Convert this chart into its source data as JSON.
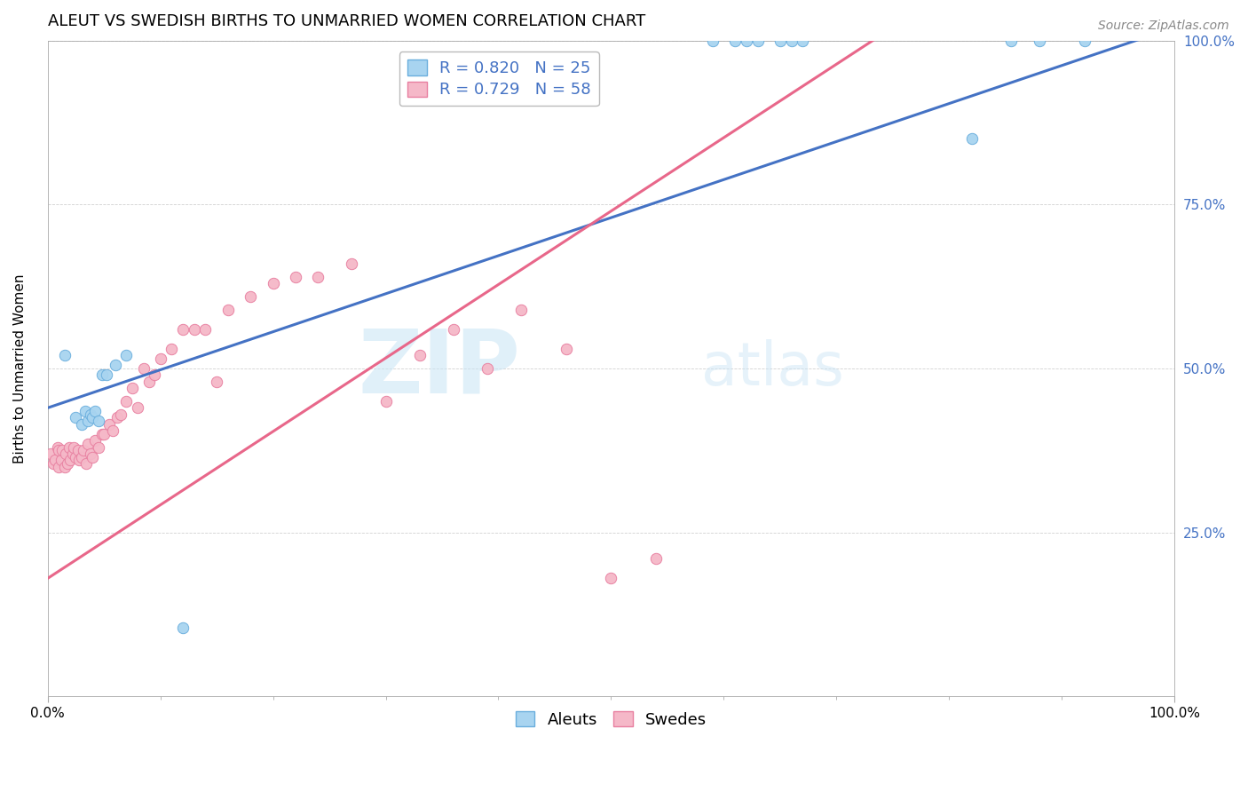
{
  "title": "ALEUT VS SWEDISH BIRTHS TO UNMARRIED WOMEN CORRELATION CHART",
  "source": "Source: ZipAtlas.com",
  "ylabel": "Births to Unmarried Women",
  "xlim": [
    0.0,
    1.0
  ],
  "ylim": [
    0.0,
    1.0
  ],
  "ytick_positions": [
    0.25,
    0.5,
    0.75,
    1.0
  ],
  "ytick_labels": [
    "25.0%",
    "50.0%",
    "75.0%",
    "100.0%"
  ],
  "aleut_color": "#a8d4f0",
  "aleut_edge_color": "#6aaedd",
  "swede_color": "#f5b8c8",
  "swede_edge_color": "#e87fa0",
  "aleut_line_color": "#4472C4",
  "swede_line_color": "#e8678a",
  "aleut_R": 0.82,
  "aleut_N": 25,
  "swede_R": 0.729,
  "swede_N": 58,
  "watermark_zip": "ZIP",
  "watermark_atlas": "atlas",
  "legend_label_aleut": "Aleuts",
  "legend_label_swede": "Swedes",
  "aleut_line_x0": 0.0,
  "aleut_line_y0": 0.44,
  "aleut_line_x1": 1.0,
  "aleut_line_y1": 1.02,
  "swede_line_x0": 0.0,
  "swede_line_y0": 0.18,
  "swede_line_x1": 0.75,
  "swede_line_y1": 1.02,
  "title_fontsize": 13,
  "axis_label_fontsize": 11,
  "tick_fontsize": 11,
  "legend_fontsize": 13,
  "source_fontsize": 10,
  "marker_size": 80,
  "aleut_x": [
    0.025,
    0.03,
    0.033,
    0.036,
    0.038,
    0.04,
    0.042,
    0.045,
    0.048,
    0.052,
    0.015,
    0.06,
    0.07,
    0.59,
    0.61,
    0.62,
    0.63,
    0.65,
    0.66,
    0.67,
    0.82,
    0.855,
    0.88,
    0.92,
    0.12
  ],
  "aleut_y": [
    0.425,
    0.415,
    0.435,
    0.42,
    0.43,
    0.425,
    0.435,
    0.42,
    0.49,
    0.49,
    0.52,
    0.505,
    0.52,
    1.0,
    1.0,
    1.0,
    1.0,
    1.0,
    1.0,
    1.0,
    0.85,
    1.0,
    1.0,
    1.0,
    0.105
  ],
  "swede_x": [
    0.003,
    0.005,
    0.007,
    0.009,
    0.01,
    0.01,
    0.012,
    0.013,
    0.015,
    0.016,
    0.018,
    0.019,
    0.02,
    0.022,
    0.023,
    0.025,
    0.027,
    0.028,
    0.03,
    0.032,
    0.034,
    0.036,
    0.038,
    0.04,
    0.042,
    0.045,
    0.048,
    0.05,
    0.055,
    0.058,
    0.062,
    0.065,
    0.07,
    0.075,
    0.08,
    0.085,
    0.09,
    0.095,
    0.1,
    0.11,
    0.12,
    0.13,
    0.14,
    0.15,
    0.16,
    0.18,
    0.2,
    0.22,
    0.24,
    0.27,
    0.3,
    0.33,
    0.36,
    0.39,
    0.42,
    0.46,
    0.5,
    0.54
  ],
  "swede_y": [
    0.37,
    0.355,
    0.36,
    0.38,
    0.35,
    0.375,
    0.36,
    0.375,
    0.35,
    0.37,
    0.355,
    0.38,
    0.36,
    0.37,
    0.38,
    0.365,
    0.375,
    0.36,
    0.365,
    0.375,
    0.355,
    0.385,
    0.37,
    0.365,
    0.39,
    0.38,
    0.4,
    0.4,
    0.415,
    0.405,
    0.425,
    0.43,
    0.45,
    0.47,
    0.44,
    0.5,
    0.48,
    0.49,
    0.515,
    0.53,
    0.56,
    0.56,
    0.56,
    0.48,
    0.59,
    0.61,
    0.63,
    0.64,
    0.64,
    0.66,
    0.45,
    0.52,
    0.56,
    0.5,
    0.59,
    0.53,
    0.18,
    0.21
  ]
}
